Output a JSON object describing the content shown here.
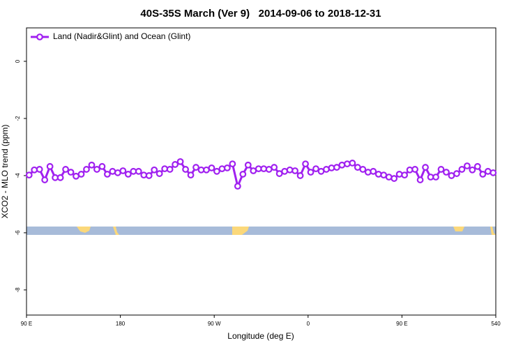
{
  "chart_data": {
    "type": "line",
    "title": "40S-35S March (Ver 9)   2014-09-06 to 2018-12-31",
    "xlabel": "Longitude (deg E)",
    "ylabel": "XCO2 - MLO trend (ppm)",
    "x": [
      92.5,
      97.5,
      102.5,
      107.5,
      112.5,
      117.5,
      122.5,
      127.5,
      132.5,
      137.5,
      142.5,
      147.5,
      152.5,
      157.5,
      162.5,
      167.5,
      172.5,
      177.5,
      182.5,
      187.5,
      192.5,
      197.5,
      202.5,
      207.5,
      212.5,
      217.5,
      222.5,
      227.5,
      232.5,
      237.5,
      242.5,
      247.5,
      252.5,
      257.5,
      262.5,
      267.5,
      272.5,
      277.5,
      282.5,
      287.5,
      292.5,
      297.5,
      302.5,
      307.5,
      312.5,
      317.5,
      322.5,
      327.5,
      332.5,
      337.5,
      342.5,
      347.5,
      352.5,
      357.5,
      362.5,
      367.5,
      372.5,
      377.5,
      382.5,
      387.5,
      392.5,
      397.5,
      402.5,
      407.5,
      412.5,
      417.5,
      422.5,
      427.5,
      432.5,
      437.5,
      442.5,
      447.5,
      452.5,
      457.5,
      462.5,
      467.5,
      472.5,
      477.5,
      482.5,
      487.5,
      492.5,
      497.5,
      502.5,
      507.5,
      512.5,
      517.5,
      522.5,
      527.5,
      532.5,
      537.5
    ],
    "series": [
      {
        "name": "Land (Nadir&Glint) and Ocean (Glint)",
        "color": "#a020f0",
        "values": [
          -3.98,
          -3.8,
          -3.78,
          -4.15,
          -3.68,
          -4.07,
          -4.07,
          -3.78,
          -3.88,
          -4.02,
          -3.95,
          -3.78,
          -3.63,
          -3.78,
          -3.68,
          -3.95,
          -3.85,
          -3.9,
          -3.83,
          -3.95,
          -3.85,
          -3.85,
          -3.98,
          -4.0,
          -3.8,
          -3.93,
          -3.76,
          -3.78,
          -3.61,
          -3.51,
          -3.78,
          -3.98,
          -3.71,
          -3.8,
          -3.8,
          -3.73,
          -3.85,
          -3.76,
          -3.73,
          -3.59,
          -4.37,
          -3.95,
          -3.63,
          -3.83,
          -3.76,
          -3.76,
          -3.78,
          -3.71,
          -3.93,
          -3.85,
          -3.8,
          -3.83,
          -4.0,
          -3.59,
          -3.88,
          -3.76,
          -3.85,
          -3.78,
          -3.73,
          -3.71,
          -3.63,
          -3.59,
          -3.56,
          -3.71,
          -3.78,
          -3.88,
          -3.85,
          -3.95,
          -3.98,
          -4.05,
          -4.1,
          -3.95,
          -3.98,
          -3.8,
          -3.78,
          -4.15,
          -3.71,
          -4.05,
          -4.05,
          -3.78,
          -3.88,
          -4.0,
          -3.93,
          -3.78,
          -3.66,
          -3.8,
          -3.68,
          -3.95,
          -3.85,
          -3.9
        ]
      }
    ],
    "xlim": [
      90,
      540
    ],
    "xticks": [
      {
        "value": 90,
        "label": "90 E"
      },
      180,
      {
        "value": 270,
        "label": "90 W"
      },
      {
        "value": 360,
        "label": "0"
      },
      {
        "value": 450,
        "label": "90 E"
      },
      540
    ],
    "ylim": [
      -8.88,
      1.17
    ],
    "yticks": [
      0,
      -2,
      -4,
      -6,
      -8
    ],
    "legend": "top-left"
  }
}
